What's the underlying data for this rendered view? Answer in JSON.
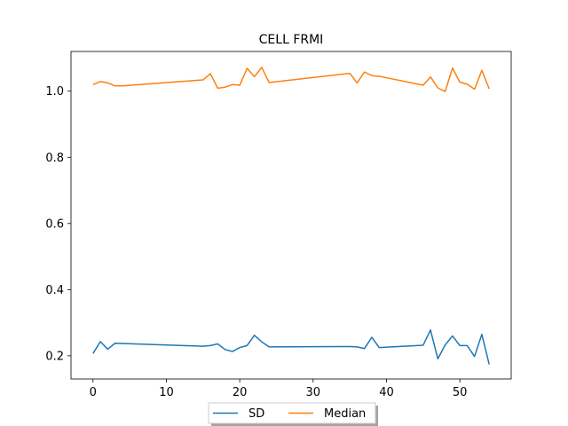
{
  "chart_data": {
    "type": "line",
    "title": "CELL FRMI",
    "xlabel": "",
    "ylabel": "",
    "xlim": [
      -3,
      57
    ],
    "ylim": [
      0.13,
      1.12
    ],
    "xticks": [
      0,
      10,
      20,
      30,
      40,
      50
    ],
    "yticks": [
      0.2,
      0.4,
      0.6,
      0.8,
      1.0
    ],
    "grid": false,
    "legend": "lower center, outside plot",
    "series": [
      {
        "name": "SD",
        "color": "#1f77b4",
        "x": [
          0,
          1,
          2,
          3,
          15,
          16,
          17,
          18,
          19,
          20,
          21,
          22,
          23,
          24,
          35,
          36,
          37,
          38,
          39,
          45,
          46,
          47,
          48,
          49,
          50,
          51,
          52,
          53,
          54
        ],
        "y": [
          0.207,
          0.243,
          0.22,
          0.238,
          0.229,
          0.231,
          0.236,
          0.219,
          0.213,
          0.225,
          0.231,
          0.262,
          0.242,
          0.227,
          0.228,
          0.227,
          0.222,
          0.256,
          0.225,
          0.232,
          0.278,
          0.191,
          0.233,
          0.26,
          0.231,
          0.231,
          0.198,
          0.265,
          0.174
        ]
      },
      {
        "name": "Median",
        "color": "#ff7f0e",
        "x": [
          0,
          1,
          2,
          3,
          4,
          15,
          16,
          17,
          18,
          19,
          20,
          21,
          22,
          23,
          24,
          35,
          36,
          37,
          38,
          39,
          45,
          46,
          47,
          48,
          49,
          50,
          51,
          52,
          53,
          54
        ],
        "y": [
          1.02,
          1.029,
          1.025,
          1.016,
          1.016,
          1.034,
          1.053,
          1.009,
          1.012,
          1.02,
          1.018,
          1.069,
          1.044,
          1.072,
          1.026,
          1.054,
          1.025,
          1.058,
          1.047,
          1.045,
          1.018,
          1.043,
          1.01,
          0.999,
          1.07,
          1.027,
          1.021,
          1.006,
          1.063,
          1.007
        ]
      }
    ]
  }
}
